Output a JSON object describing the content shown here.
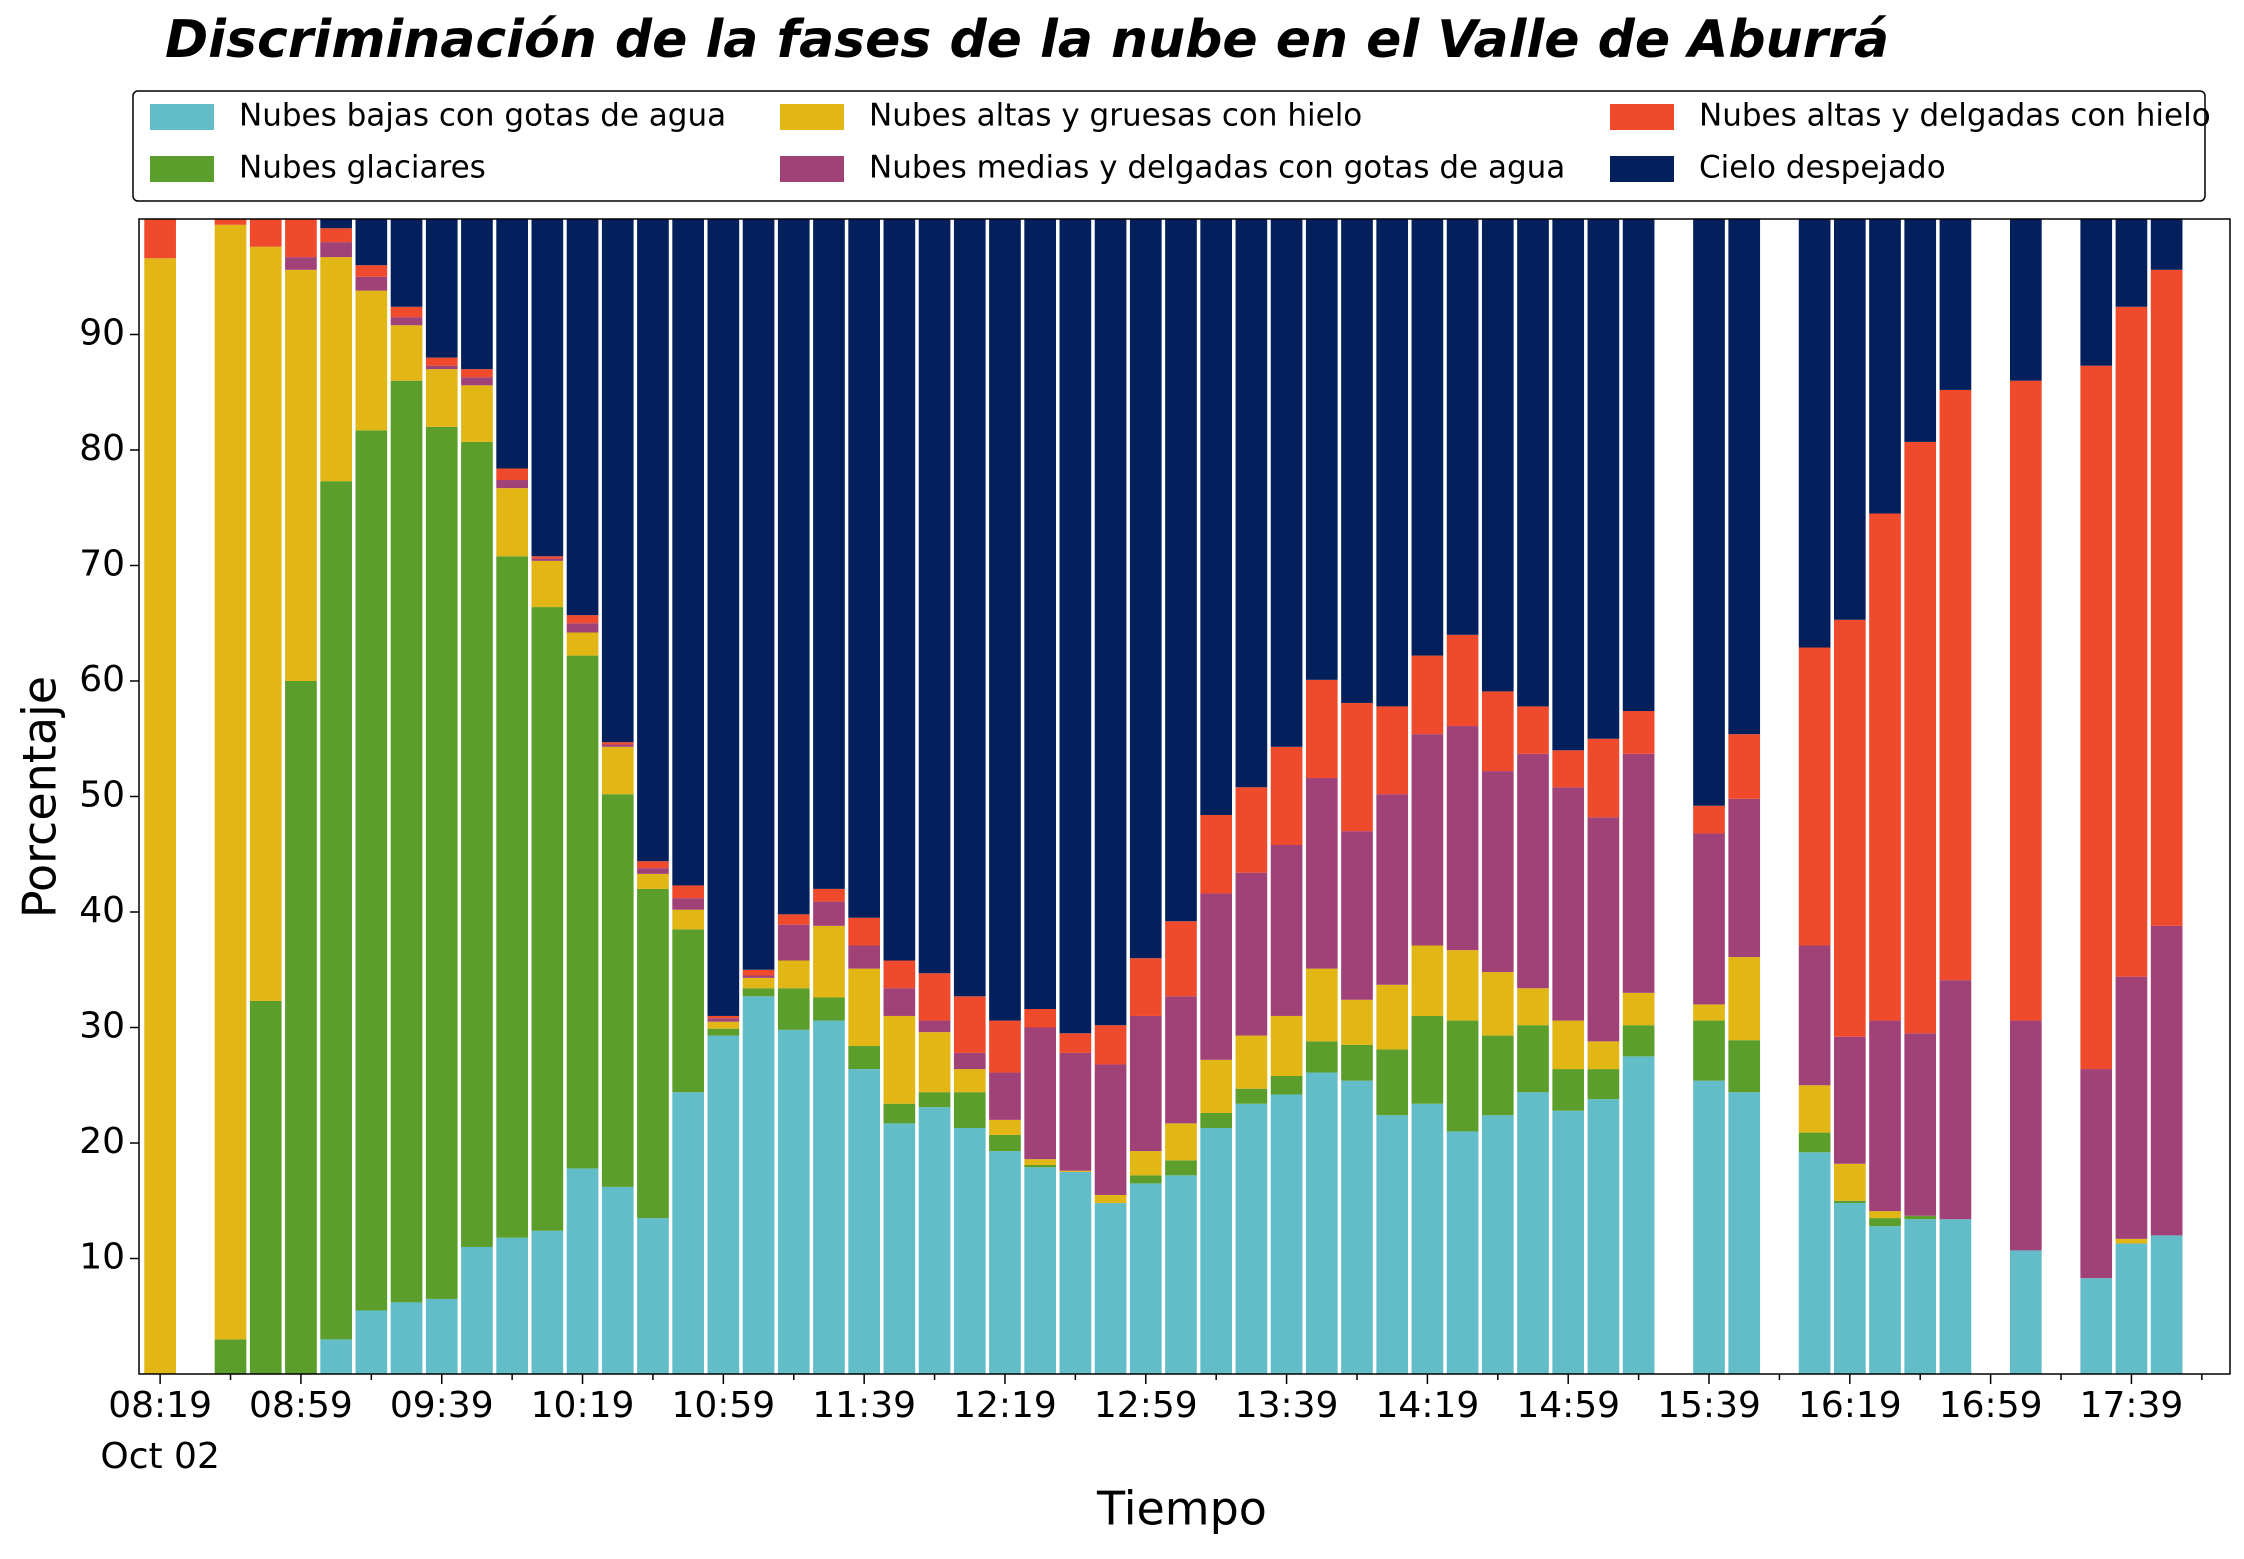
{
  "chart_data": {
    "type": "stacked_bar",
    "title": "Discriminación de la fases de la nube en el Valle de Aburrá",
    "x_label": "Tiempo",
    "y_label": "Porcentaje",
    "date_label": "Oct 02",
    "categories": [
      "08:19",
      null,
      null,
      null,
      "08:59",
      null,
      null,
      null,
      "09:39",
      null,
      null,
      null,
      "10:19",
      null,
      null,
      null,
      "10:59",
      null,
      null,
      null,
      "11:39",
      null,
      null,
      null,
      "12:19",
      null,
      null,
      null,
      "12:59",
      null,
      null,
      null,
      "13:39",
      null,
      null,
      null,
      "14:19",
      null,
      null,
      null,
      "14:59",
      null,
      null,
      null,
      "15:39",
      null,
      null,
      null,
      "16:19",
      null,
      null,
      null,
      "16:59",
      null,
      null,
      null,
      "17:39",
      null
    ],
    "ylim": [
      0,
      100
    ],
    "yticks": [
      10,
      20,
      30,
      40,
      50,
      60,
      70,
      80,
      90
    ],
    "grid": false,
    "legend": "top",
    "series": [
      {
        "name": "Nubes bajas con gotas de agua",
        "color": "#63bdc9",
        "values": [
          0,
          null,
          0,
          0,
          0,
          3,
          5.5,
          6.2,
          6.5,
          11,
          11.8,
          12.4,
          17.8,
          16.2,
          13.5,
          24.4,
          29.3,
          32.7,
          29.8,
          30.6,
          26.4,
          21.7,
          23.1,
          21.3,
          19.3,
          17.9,
          17.5,
          14.8,
          16.5,
          17.2,
          21.3,
          23.4,
          24.2,
          26.1,
          25.4,
          22.4,
          23.4,
          21,
          22.4,
          24.4,
          22.8,
          23.8,
          27.5,
          null,
          25.4,
          24.4,
          null,
          19.2,
          14.8,
          12.8,
          13.4,
          13.4,
          null,
          10.7,
          null,
          8.3,
          11.3,
          12
        ]
      },
      {
        "name": "Nubes glaciares",
        "color": "#5b9e2b",
        "values": [
          0,
          null,
          3,
          32.3,
          60,
          74.3,
          76.2,
          79.8,
          75.5,
          69.7,
          59,
          54,
          44.4,
          34,
          28.5,
          14.1,
          0.6,
          0.7,
          3.6,
          2,
          2,
          1.7,
          1.3,
          3.1,
          1.4,
          0.2,
          0,
          0,
          0.7,
          1.3,
          1.3,
          1.3,
          1.6,
          2.7,
          3.1,
          5.7,
          7.6,
          9.6,
          6.9,
          5.8,
          3.6,
          2.6,
          2.7,
          null,
          5.2,
          4.5,
          null,
          1.7,
          0.2,
          0.7,
          0.3,
          0,
          null,
          0,
          null,
          0,
          0,
          0
        ]
      },
      {
        "name": "Nubes altas y gruesas con hielo",
        "color": "#e2b614",
        "values": [
          96.6,
          null,
          96.5,
          65.3,
          35.6,
          19.4,
          12.1,
          4.8,
          5,
          4.9,
          5.9,
          4,
          2,
          4.1,
          1.3,
          1.7,
          0.6,
          0.9,
          2.4,
          6.2,
          6.7,
          7.6,
          5.2,
          2,
          1.3,
          0.5,
          0.1,
          0.7,
          2.1,
          3.2,
          4.6,
          4.6,
          5.2,
          6.3,
          3.9,
          5.6,
          6.1,
          6.1,
          5.5,
          3.2,
          4.2,
          2.4,
          2.8,
          null,
          1.4,
          7.2,
          null,
          4.1,
          3.2,
          0.6,
          0,
          0,
          null,
          0,
          null,
          0,
          0.4,
          0
        ]
      },
      {
        "name": "Nubes medias y delgadas con gotas de agua",
        "color": "#a04278",
        "values": [
          0,
          null,
          0,
          0,
          1.1,
          1.3,
          1.2,
          0.7,
          0.3,
          0.7,
          0.7,
          0.2,
          0.8,
          0.2,
          0.5,
          1,
          0.3,
          0.2,
          3.1,
          2.1,
          2,
          2.4,
          1,
          1.4,
          4.1,
          11.4,
          10.2,
          11.3,
          11.7,
          11,
          14.4,
          14.1,
          14.8,
          16.5,
          14.6,
          16.5,
          18.3,
          19.4,
          17.4,
          20.3,
          20.2,
          19.4,
          20.7,
          null,
          14.8,
          13.7,
          null,
          12.1,
          11,
          16.5,
          15.8,
          20.7,
          null,
          19.9,
          null,
          18.1,
          22.7,
          26.8
        ]
      },
      {
        "name": "Nubes altas y delgadas con hielo",
        "color": "#ee4a2b",
        "values": [
          3.4,
          null,
          0.5,
          2.4,
          3.3,
          1.2,
          1,
          0.9,
          0.7,
          0.7,
          1,
          0.2,
          0.7,
          0.2,
          0.6,
          1.1,
          0.2,
          0.5,
          0.9,
          1.1,
          2.4,
          2.4,
          4.1,
          4.9,
          4.5,
          1.6,
          1.7,
          3.4,
          5,
          6.5,
          6.8,
          7.4,
          8.5,
          8.5,
          11.1,
          7.6,
          6.8,
          7.9,
          6.9,
          4.1,
          3.2,
          6.8,
          3.7,
          null,
          2.4,
          5.6,
          null,
          25.8,
          36.1,
          43.9,
          51.2,
          51.1,
          null,
          55.4,
          null,
          60.9,
          58,
          56.8
        ]
      },
      {
        "name": "Cielo despejado",
        "color": "#031f5c",
        "values": [
          0,
          null,
          0,
          0,
          0,
          0.8,
          4,
          7.6,
          12,
          13,
          21.6,
          29.2,
          34.3,
          45.3,
          55.6,
          57.7,
          69,
          65,
          60.2,
          58,
          60.5,
          64.2,
          65.3,
          67.3,
          69.4,
          68.4,
          70.5,
          69.8,
          64,
          60.8,
          51.6,
          49.2,
          45.7,
          39.9,
          41.9,
          42.2,
          37.8,
          36,
          40.9,
          42.2,
          46,
          45,
          42.6,
          null,
          50.8,
          44.6,
          null,
          37.1,
          34.7,
          25.5,
          19.3,
          14.8,
          null,
          14,
          null,
          12.7,
          7.6,
          4.4
        ]
      }
    ]
  }
}
